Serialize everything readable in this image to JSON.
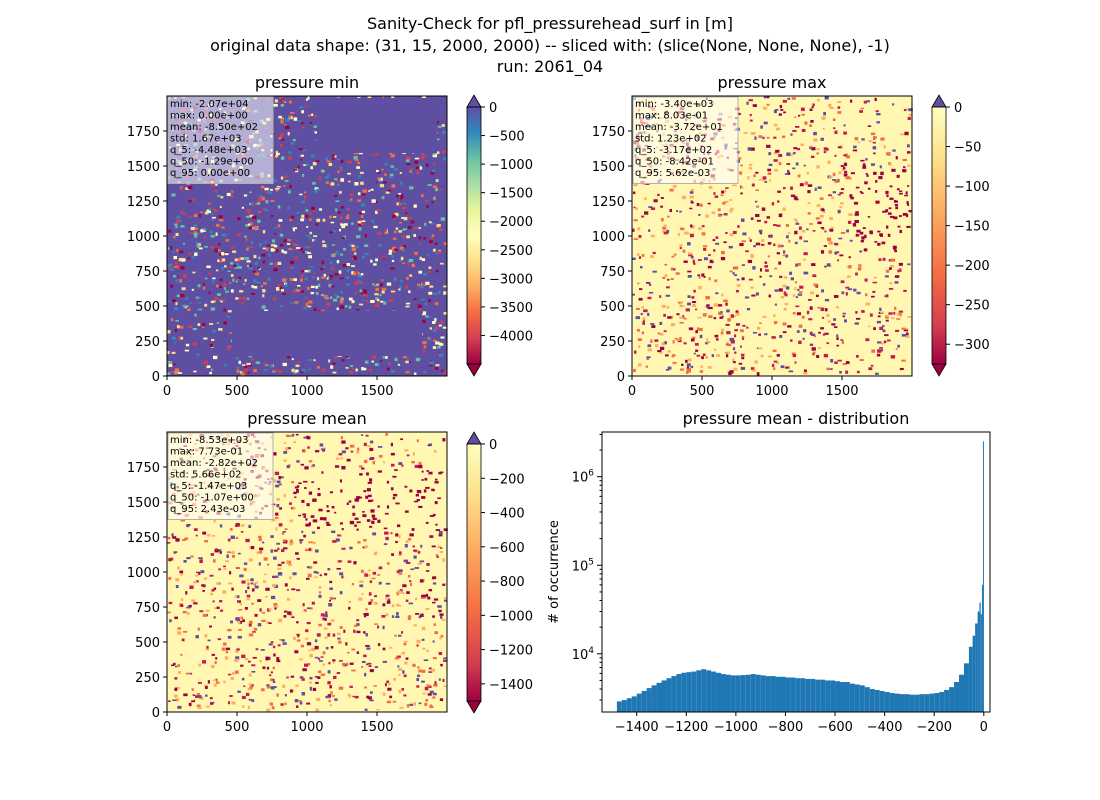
{
  "suptitle": {
    "line1": "Sanity-Check for pfl_pressurehead_surf in [m]",
    "line2": "original data shape: (31, 15, 2000, 2000) -- sliced with: (slice(None, None, None), -1)",
    "line3": "run: 2061_04"
  },
  "chart_data": [
    {
      "type": "heatmap",
      "title": "pressure min",
      "colormap": "Spectral",
      "xlim": [
        0,
        2000
      ],
      "ylim": [
        0,
        2000
      ],
      "xticks": [
        0,
        500,
        1000,
        1500
      ],
      "yticks": [
        0,
        250,
        500,
        750,
        1000,
        1250,
        1500,
        1750
      ],
      "colorbar": {
        "range": [
          -4500,
          0
        ],
        "ticks": [
          0,
          -500,
          -1000,
          -1500,
          -2000,
          -2500,
          -3000,
          -3500,
          -4000
        ],
        "extend": "both"
      },
      "stats": [
        "min: -2.07e+04",
        "max: 0.00e+00",
        "mean: -8.50e+02",
        "std: 1.67e+03",
        "q_5: -4.48e+03",
        "q_50: -1.29e+00",
        "q_95: 0.00e+00"
      ]
    },
    {
      "type": "heatmap",
      "title": "pressure max",
      "colormap": "Spectral",
      "xlim": [
        0,
        2000
      ],
      "ylim": [
        0,
        2000
      ],
      "xticks": [
        0,
        500,
        1000,
        1500
      ],
      "yticks": [
        0,
        250,
        500,
        750,
        1000,
        1250,
        1500,
        1750
      ],
      "colorbar": {
        "range": [
          -325,
          0
        ],
        "ticks": [
          0,
          -50,
          -100,
          -150,
          -200,
          -250,
          -300
        ],
        "extend": "both"
      },
      "stats": [
        "min: -3.40e+03",
        "max: 8.03e-01",
        "mean: -3.72e+01",
        "std: 1.23e+02",
        "q_5: -3.17e+02",
        "q_50: -8.42e-01",
        "q_95: 5.62e-03"
      ]
    },
    {
      "type": "heatmap",
      "title": "pressure mean",
      "colormap": "Spectral",
      "xlim": [
        0,
        2000
      ],
      "ylim": [
        0,
        2000
      ],
      "xticks": [
        0,
        500,
        1000,
        1500
      ],
      "yticks": [
        0,
        250,
        500,
        750,
        1000,
        1250,
        1500,
        1750
      ],
      "colorbar": {
        "range": [
          -1500,
          0
        ],
        "ticks": [
          0,
          -200,
          -400,
          -600,
          -800,
          -1000,
          -1200,
          -1400
        ],
        "extend": "both"
      },
      "stats": [
        "min: -8.53e+03",
        "max: 7.73e-01",
        "mean: -2.82e+02",
        "std: 5.66e+02",
        "q_5: -1.47e+03",
        "q_50: -1.07e+00",
        "q_95: 2.43e-03"
      ]
    },
    {
      "type": "bar",
      "title": "pressure mean - distribution",
      "ylabel": "# of occurrence",
      "xlabel": "",
      "yscale": "log",
      "xlim": [
        -1540,
        25
      ],
      "ylim": [
        2200,
        3200000
      ],
      "xticks": [
        -1400,
        -1200,
        -1000,
        -800,
        -600,
        -400,
        -200,
        0
      ],
      "yticks": [
        {
          "value": 10000,
          "label": "10^4"
        },
        {
          "value": 100000,
          "label": "10^5"
        },
        {
          "value": 1000000,
          "label": "10^6"
        }
      ],
      "bar_color": "#1f77b4",
      "bins": {
        "x": [
          -1470,
          -1450,
          -1430,
          -1410,
          -1390,
          -1370,
          -1350,
          -1330,
          -1310,
          -1290,
          -1270,
          -1250,
          -1230,
          -1210,
          -1190,
          -1170,
          -1150,
          -1130,
          -1110,
          -1090,
          -1070,
          -1050,
          -1030,
          -1010,
          -990,
          -970,
          -950,
          -930,
          -910,
          -890,
          -870,
          -850,
          -830,
          -810,
          -790,
          -770,
          -750,
          -730,
          -710,
          -690,
          -670,
          -650,
          -630,
          -610,
          -590,
          -570,
          -550,
          -530,
          -510,
          -490,
          -470,
          -450,
          -430,
          -410,
          -390,
          -370,
          -350,
          -330,
          -310,
          -290,
          -270,
          -250,
          -230,
          -210,
          -190,
          -170,
          -150,
          -130,
          -110,
          -90,
          -70,
          -50,
          -40,
          -30,
          -20,
          -15,
          -10,
          -5,
          -2
        ],
        "values": [
          2900,
          3000,
          3150,
          3300,
          3550,
          3800,
          4100,
          4400,
          4700,
          5000,
          5300,
          5600,
          5900,
          6100,
          6200,
          6300,
          6500,
          6700,
          6500,
          6300,
          6100,
          5900,
          5800,
          5700,
          5700,
          5750,
          5800,
          5900,
          5800,
          5700,
          5600,
          5600,
          5500,
          5500,
          5400,
          5400,
          5300,
          5300,
          5200,
          5200,
          5100,
          5100,
          5000,
          5000,
          4900,
          4800,
          4800,
          4600,
          4500,
          4400,
          4200,
          4000,
          3900,
          3800,
          3700,
          3600,
          3550,
          3500,
          3500,
          3450,
          3450,
          3500,
          3500,
          3550,
          3600,
          3700,
          3900,
          4200,
          4800,
          5800,
          7800,
          12000,
          16000,
          22000,
          30000,
          38000,
          28000,
          60000,
          2500000
        ]
      }
    }
  ]
}
